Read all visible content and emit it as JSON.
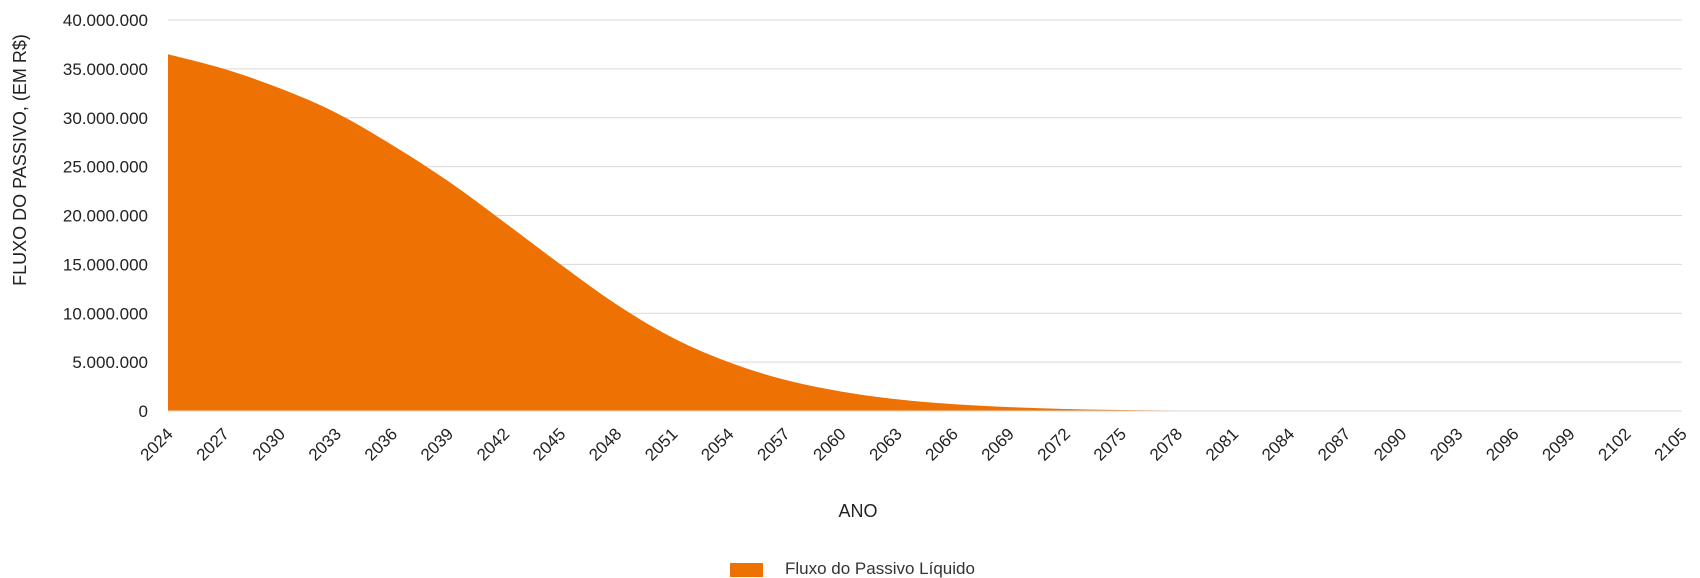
{
  "chart_data": {
    "type": "area",
    "title": "",
    "xlabel": "ANO",
    "ylabel": "FLUXO DO PASSIVO, (EM R$)",
    "xlim": [
      2024,
      2105
    ],
    "ylim": [
      0,
      40000000
    ],
    "y_ticks": [
      0,
      5000000,
      10000000,
      15000000,
      20000000,
      25000000,
      30000000,
      35000000,
      40000000
    ],
    "y_tick_labels": [
      "0",
      "5.000.000",
      "10.000.000",
      "15.000.000",
      "20.000.000",
      "25.000.000",
      "30.000.000",
      "35.000.000",
      "40.000.000"
    ],
    "x_ticks": [
      2024,
      2027,
      2030,
      2033,
      2036,
      2039,
      2042,
      2045,
      2048,
      2051,
      2054,
      2057,
      2060,
      2063,
      2066,
      2069,
      2072,
      2075,
      2078,
      2081,
      2084,
      2087,
      2090,
      2093,
      2096,
      2099,
      2102,
      2105
    ],
    "x_tick_labels": [
      "2024",
      "2027",
      "2030",
      "2033",
      "2036",
      "2039",
      "2042",
      "2045",
      "2048",
      "2051",
      "2054",
      "2057",
      "2060",
      "2063",
      "2066",
      "2069",
      "2072",
      "2075",
      "2078",
      "2081",
      "2084",
      "2087",
      "2090",
      "2093",
      "2096",
      "2099",
      "2102",
      "2105"
    ],
    "grid": true,
    "legend_position": "bottom-center",
    "colors": {
      "series": "#ED7203",
      "grid": "#d9d9d9",
      "text": "#222222"
    },
    "series": [
      {
        "name": "Fluxo do Passivo Líquido",
        "x": [
          2024,
          2027,
          2030,
          2033,
          2036,
          2039,
          2042,
          2045,
          2048,
          2051,
          2054,
          2057,
          2060,
          2063,
          2066,
          2069,
          2072,
          2075,
          2078,
          2081,
          2084,
          2087,
          2090,
          2093,
          2096,
          2099,
          2102,
          2105
        ],
        "values": [
          36500000,
          35000000,
          33000000,
          30500000,
          27200000,
          23500000,
          19300000,
          15000000,
          10900000,
          7500000,
          5000000,
          3200000,
          2000000,
          1200000,
          700000,
          400000,
          200000,
          100000,
          50000,
          20000,
          5000,
          0,
          0,
          0,
          0,
          0,
          0,
          0
        ]
      }
    ]
  }
}
